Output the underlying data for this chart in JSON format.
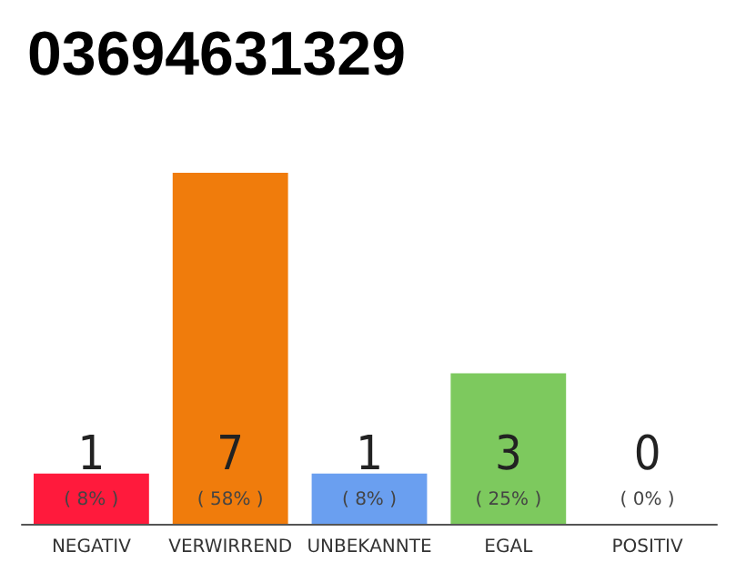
{
  "chart_data": {
    "type": "bar",
    "title": "03694631329",
    "categories": [
      "NEGATIV",
      "VERWIRREND",
      "UNBEKANNTE",
      "EGAL",
      "POSITIV"
    ],
    "values": [
      1,
      7,
      1,
      3,
      0
    ],
    "colors": [
      "#ff1a3c",
      "#f07c0c",
      "#6a9ff0",
      "#7dc95e",
      "#d0d0d0"
    ],
    "data_labels": true,
    "annotations": [
      "( 8% )",
      "( 58% )",
      "( 8% )",
      "( 25% )",
      "( 0% )"
    ]
  }
}
